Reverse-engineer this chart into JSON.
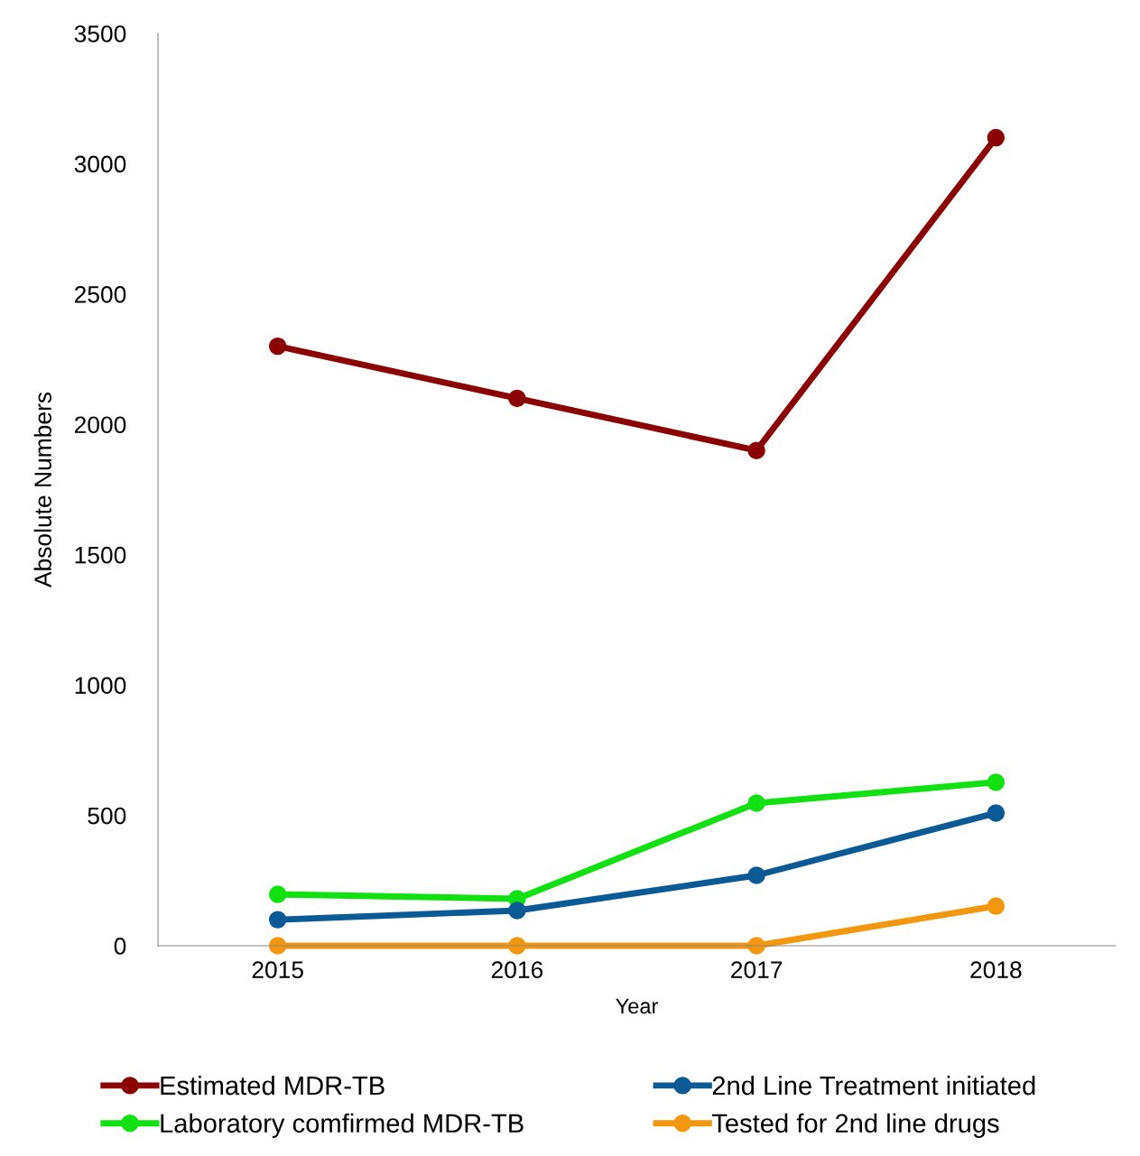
{
  "chart_data": {
    "type": "line",
    "xlabel": "Year",
    "ylabel": "Absolute Numbers",
    "categories": [
      "2015",
      "2016",
      "2017",
      "2018"
    ],
    "series": [
      {
        "name": "Estimated MDR-TB",
        "color": "#8b0000",
        "values": [
          2300,
          2100,
          1900,
          3100
        ]
      },
      {
        "name": "Laboratory comfirmed MDR-TB",
        "color": "#11e011",
        "values": [
          197,
          180,
          547,
          627
        ]
      },
      {
        "name": "2nd Line Treatment initiated",
        "color": "#0a5a96",
        "values": [
          100,
          135,
          270,
          509
        ]
      },
      {
        "name": "Tested for 2nd line drugs",
        "color": "#f5960f",
        "values": [
          0,
          0,
          0,
          152
        ]
      }
    ],
    "ylim": [
      0,
      3500
    ],
    "yticks": [
      0,
      500,
      1000,
      1500,
      2000,
      2500,
      3000,
      3500
    ],
    "grid": false,
    "legend": "bottom",
    "marker": "circle",
    "line_style": "solid"
  }
}
